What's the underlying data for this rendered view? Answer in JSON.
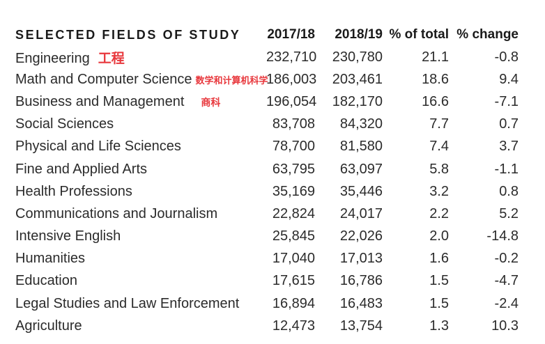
{
  "chart_data": {
    "type": "table",
    "columns": [
      "SELECTED FIELDS OF STUDY",
      "2017/18",
      "2018/19",
      "% of total",
      "% change"
    ],
    "rows": [
      {
        "field": "Engineering",
        "annotation": "工程",
        "y2017": "232,710",
        "y2018": "230,780",
        "pct_total": "21.1",
        "pct_change": "-0.8"
      },
      {
        "field": "Math and Computer Science",
        "annotation": "数学和计算机科学",
        "y2017": "186,003",
        "y2018": "203,461",
        "pct_total": "18.6",
        "pct_change": "9.4"
      },
      {
        "field": "Business and Management",
        "annotation": "商科",
        "y2017": "196,054",
        "y2018": "182,170",
        "pct_total": "16.6",
        "pct_change": "-7.1"
      },
      {
        "field": "Social Sciences",
        "annotation": "",
        "y2017": "83,708",
        "y2018": "84,320",
        "pct_total": "7.7",
        "pct_change": "0.7"
      },
      {
        "field": "Physical and Life Sciences",
        "annotation": "",
        "y2017": "78,700",
        "y2018": "81,580",
        "pct_total": "7.4",
        "pct_change": "3.7"
      },
      {
        "field": "Fine and Applied Arts",
        "annotation": "",
        "y2017": "63,795",
        "y2018": "63,097",
        "pct_total": "5.8",
        "pct_change": "-1.1"
      },
      {
        "field": "Health Professions",
        "annotation": "",
        "y2017": "35,169",
        "y2018": "35,446",
        "pct_total": "3.2",
        "pct_change": "0.8"
      },
      {
        "field": "Communications and Journalism",
        "annotation": "",
        "y2017": "22,824",
        "y2018": "24,017",
        "pct_total": "2.2",
        "pct_change": "5.2"
      },
      {
        "field": "Intensive English",
        "annotation": "",
        "y2017": "25,845",
        "y2018": "22,026",
        "pct_total": "2.0",
        "pct_change": "-14.8"
      },
      {
        "field": "Humanities",
        "annotation": "",
        "y2017": "17,040",
        "y2018": "17,013",
        "pct_total": "1.6",
        "pct_change": "-0.2"
      },
      {
        "field": "Education",
        "annotation": "",
        "y2017": "17,615",
        "y2018": "16,786",
        "pct_total": "1.5",
        "pct_change": "-4.7"
      },
      {
        "field": "Legal Studies and Law Enforcement",
        "annotation": "",
        "y2017": "16,894",
        "y2018": "16,483",
        "pct_total": "1.5",
        "pct_change": "-2.4"
      },
      {
        "field": "Agriculture",
        "annotation": "",
        "y2017": "12,473",
        "y2018": "13,754",
        "pct_total": "1.3",
        "pct_change": "10.3"
      }
    ]
  },
  "colors": {
    "text": "#2b2b2b",
    "header": "#1a1a1a",
    "annotation": "#e8383d"
  }
}
